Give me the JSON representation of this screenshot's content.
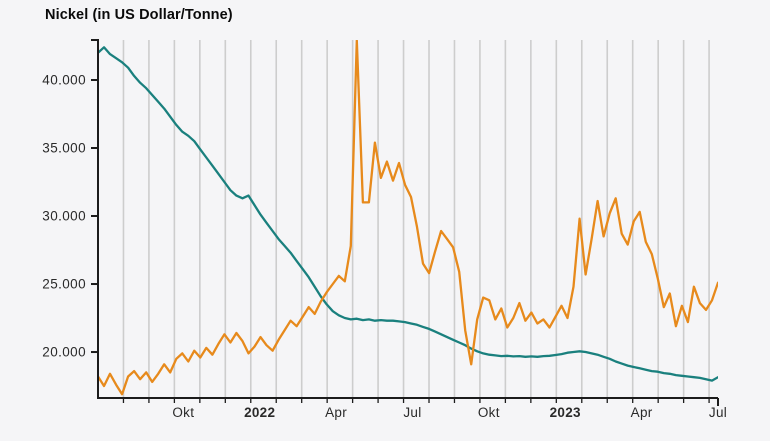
{
  "title": "Nickel (in US Dollar/Tonne)",
  "colors": {
    "background": "#f5f5f7",
    "gridline": "#cdcdcd",
    "axis": "#1c1c1c",
    "tick_label": "#2a2a2a",
    "teal_line": "#1a807e",
    "orange_line": "#e78a1c"
  },
  "chart_data": {
    "type": "line",
    "title": "Nickel (in US Dollar/Tonne)",
    "grid": "vertical-monthly",
    "legend": "none",
    "x_axis": {
      "description": "time axis, monthly gridlines from Aug 2021 to Jul 2023",
      "domain_months": [
        0,
        24.35
      ],
      "gridline_first_month": 1,
      "gridline_last_month": 24,
      "labels": [
        {
          "text": "Okt",
          "bold": false,
          "month": 3.35
        },
        {
          "text": "2022",
          "bold": true,
          "month": 6.35
        },
        {
          "text": "Apr",
          "bold": false,
          "month": 9.35
        },
        {
          "text": "Jul",
          "bold": false,
          "month": 12.35
        },
        {
          "text": "Okt",
          "bold": false,
          "month": 15.35
        },
        {
          "text": "2023",
          "bold": true,
          "month": 18.35
        },
        {
          "text": "Apr",
          "bold": false,
          "month": 21.35
        },
        {
          "text": "Jul",
          "bold": false,
          "month": 24.35
        }
      ]
    },
    "y_axis": {
      "range": [
        16620,
        42940
      ],
      "ticks": [
        {
          "label": "40.000",
          "value": 40000
        },
        {
          "label": "35.000",
          "value": 35000
        },
        {
          "label": "30.000",
          "value": 30000
        },
        {
          "label": "25.000",
          "value": 25000
        },
        {
          "label": "20.000",
          "value": 20000
        }
      ]
    },
    "series": [
      {
        "name": "teal_series",
        "color": "#1a807e",
        "values": [
          42000,
          42400,
          41900,
          41600,
          41300,
          40900,
          40300,
          39800,
          39400,
          38900,
          38400,
          37900,
          37300,
          36700,
          36200,
          35900,
          35500,
          34900,
          34300,
          33700,
          33100,
          32500,
          31900,
          31500,
          31300,
          31500,
          30800,
          30100,
          29500,
          28900,
          28300,
          27800,
          27300,
          26700,
          26100,
          25500,
          24800,
          24100,
          23500,
          23000,
          22700,
          22500,
          22400,
          22450,
          22350,
          22400,
          22300,
          22350,
          22300,
          22300,
          22250,
          22200,
          22100,
          22000,
          21850,
          21700,
          21500,
          21300,
          21100,
          20900,
          20700,
          20500,
          20250,
          20050,
          19900,
          19800,
          19750,
          19700,
          19720,
          19680,
          19700,
          19650,
          19680,
          19650,
          19700,
          19720,
          19780,
          19850,
          19950,
          20000,
          20050,
          20000,
          19900,
          19800,
          19650,
          19500,
          19300,
          19150,
          19000,
          18900,
          18800,
          18700,
          18600,
          18550,
          18450,
          18400,
          18300,
          18250,
          18200,
          18150,
          18100,
          18000,
          17900,
          18150
        ]
      },
      {
        "name": "orange_series",
        "color": "#e78a1c",
        "values": [
          18200,
          17500,
          18400,
          17600,
          16900,
          18200,
          18600,
          18000,
          18500,
          17800,
          18400,
          19100,
          18500,
          19500,
          19900,
          19300,
          20100,
          19600,
          20300,
          19800,
          20600,
          21300,
          20700,
          21400,
          20800,
          19900,
          20400,
          21100,
          20500,
          20100,
          20900,
          21600,
          22300,
          21900,
          22600,
          23300,
          22800,
          23700,
          24400,
          25000,
          25600,
          25200,
          27800,
          42900,
          31000,
          31000,
          35400,
          32800,
          34000,
          32600,
          33900,
          32300,
          31400,
          29200,
          26500,
          25800,
          27400,
          28900,
          28300,
          27700,
          25900,
          21600,
          19100,
          22400,
          24000,
          23800,
          22400,
          23200,
          21800,
          22500,
          23600,
          22300,
          22900,
          22100,
          22400,
          21800,
          22600,
          23400,
          22500,
          24800,
          29800,
          25700,
          28300,
          31100,
          28500,
          30200,
          31300,
          28700,
          27900,
          29600,
          30300,
          28100,
          27200,
          25400,
          23300,
          24300,
          21900,
          23400,
          22200,
          24800,
          23600,
          23100,
          23800,
          25100
        ]
      }
    ]
  }
}
